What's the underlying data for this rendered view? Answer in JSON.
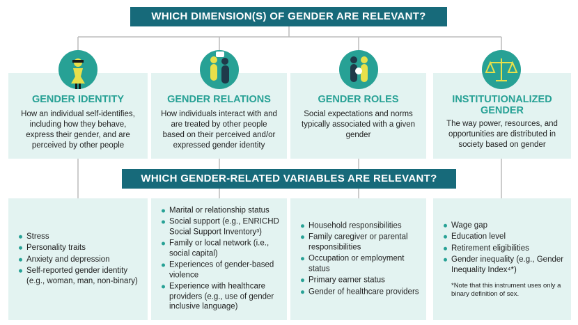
{
  "header": {
    "title": "WHICH DIMENSION(S) OF GENDER ARE RELEVANT?"
  },
  "dimensions": [
    {
      "title": "GENDER IDENTITY",
      "description": "How an individual self-identifies, including how they behave, express their gender, and are perceived by other people"
    },
    {
      "title": "GENDER RELATIONS",
      "description": "How individuals interact with and are treated by other people based on their perceived and/or expressed gender identity"
    },
    {
      "title": "GENDER ROLES",
      "description": "Social expectations and norms typically associated with a given gender"
    },
    {
      "title": "INSTITUTIONALIZED GENDER",
      "description": "The way power, resources, and opportunities are distributed in society based on gender"
    }
  ],
  "subheader": {
    "title": "WHICH GENDER-RELATED VARIABLES ARE RELEVANT?"
  },
  "variables": [
    {
      "items": [
        "Stress",
        "Personality traits",
        "Anxiety and depression",
        "Self-reported gender identity (e.g., woman, man, non-binary)"
      ]
    },
    {
      "items": [
        "Marital or relationship status",
        "Social support (e.g., ENRICHD Social Support Inventory³)",
        "Family or local network (i.e., social capital)",
        "Experiences of gender-based violence",
        "Experience with healthcare providers (e.g., use of gender inclusive language)"
      ]
    },
    {
      "items": [
        "Household responsibilities",
        "Family caregiver or parental responsibilities",
        "Occupation or employment status",
        "Primary earner status",
        "Gender of healthcare providers"
      ]
    },
    {
      "items": [
        "Wage gap",
        "Education level",
        "Retirement eligibilities",
        "Gender inequality (e.g., Gender Inequality Index⁴*)"
      ],
      "note": "*Note that this instrument uses only a binary definition of sex."
    }
  ]
}
